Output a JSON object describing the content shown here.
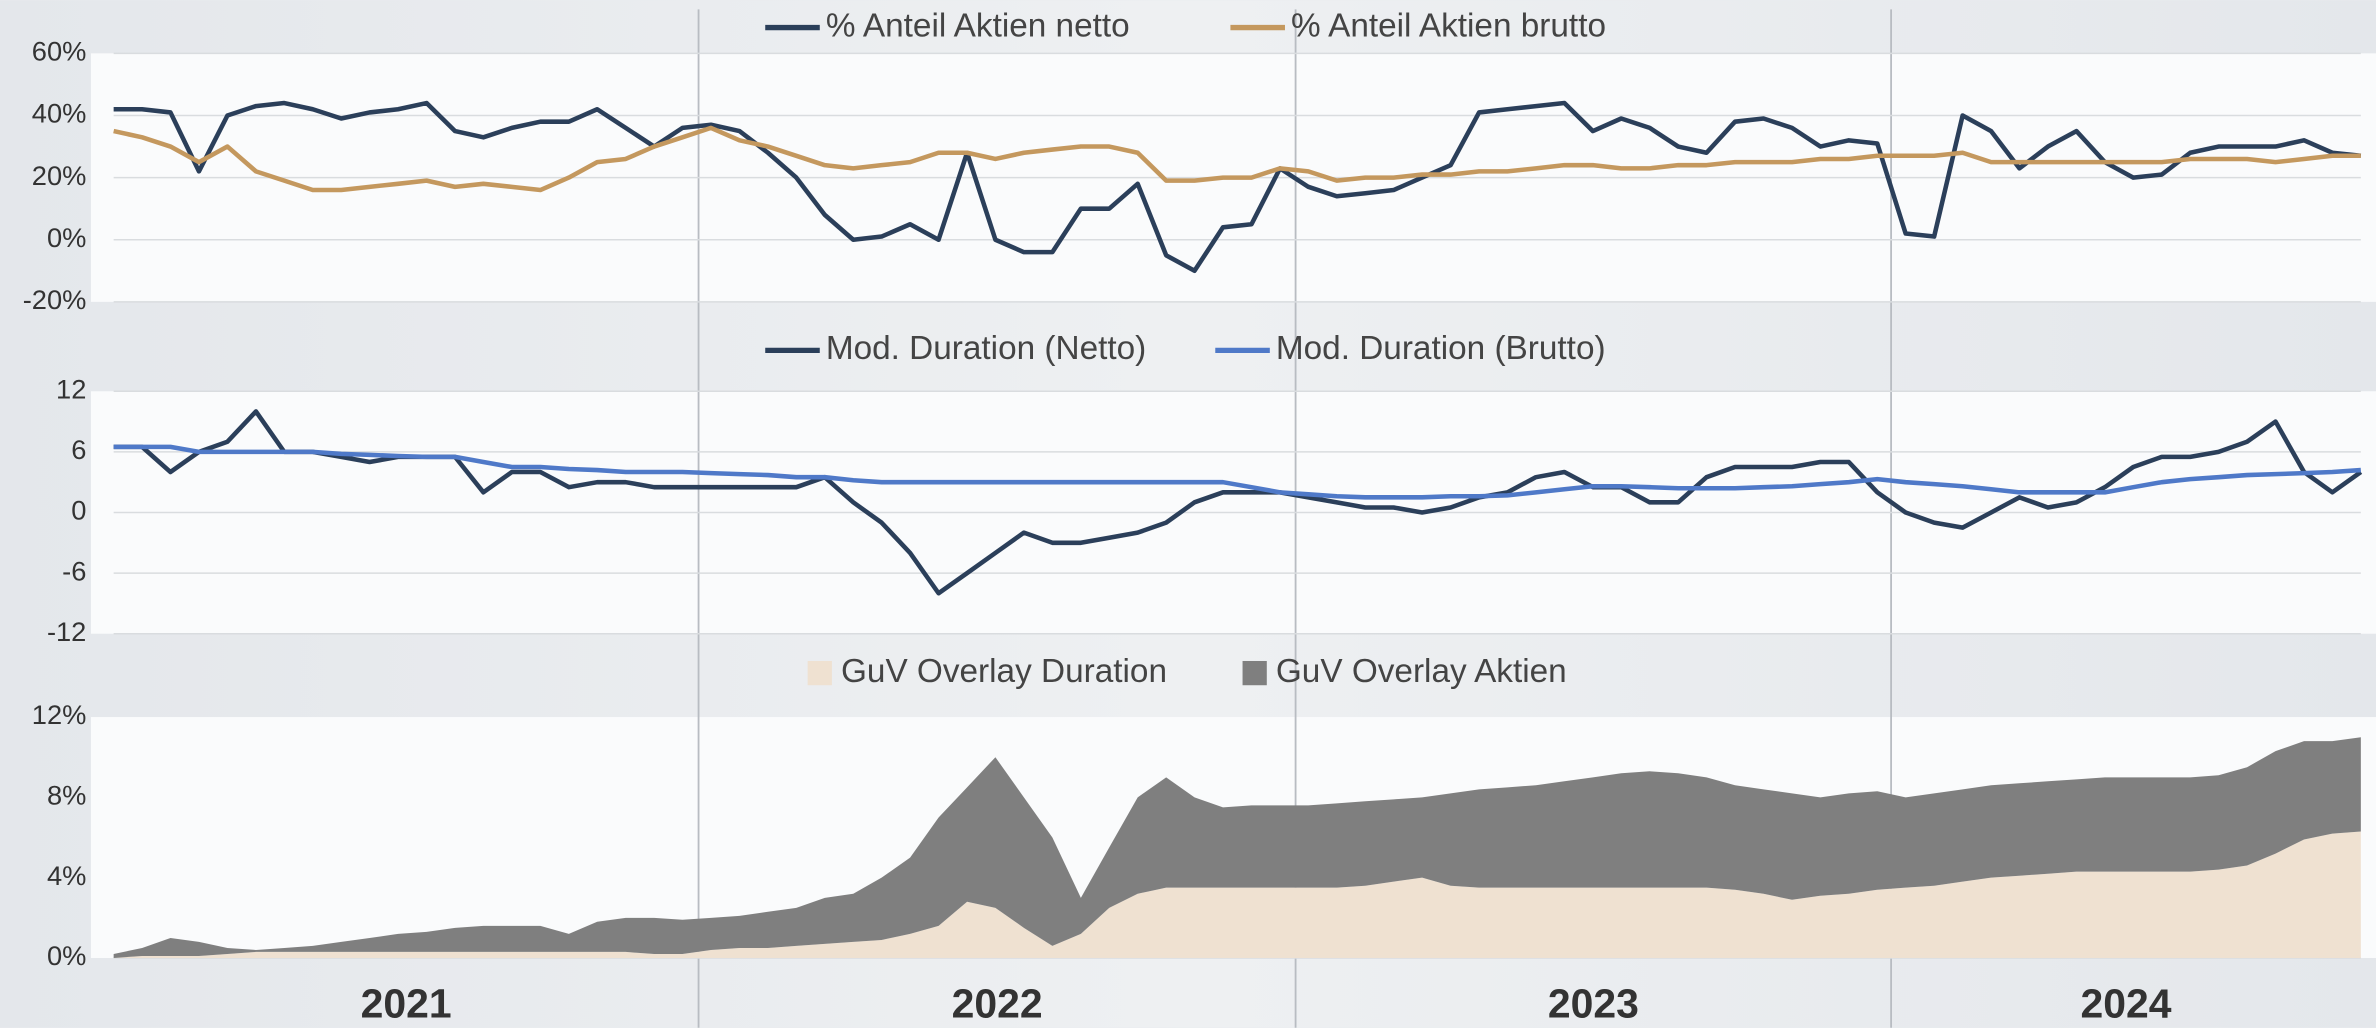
{
  "x_labels": [
    "2021",
    "2022",
    "2023",
    "2024"
  ],
  "chart_data": [
    {
      "type": "line",
      "ylim": [
        -20,
        60
      ],
      "yticks": [
        {
          "value": -20,
          "label": "-20%"
        },
        {
          "value": 0,
          "label": "0%"
        },
        {
          "value": 20,
          "label": "20%"
        },
        {
          "value": 40,
          "label": "40%"
        },
        {
          "value": 60,
          "label": "60%"
        }
      ],
      "grid": true,
      "series": [
        {
          "name": "% Anteil Aktien netto",
          "color": "#2b3f5a",
          "values": [
            42,
            42,
            41,
            22,
            40,
            43,
            44,
            42,
            39,
            41,
            42,
            44,
            35,
            33,
            36,
            38,
            38,
            42,
            36,
            30,
            36,
            37,
            35,
            28,
            20,
            8,
            0,
            1,
            5,
            0,
            28,
            0,
            -4,
            -4,
            10,
            10,
            18,
            -5,
            -10,
            4,
            5,
            23,
            17,
            14,
            15,
            16,
            20,
            24,
            41,
            42,
            43,
            44,
            35,
            39,
            36,
            30,
            28,
            38,
            39,
            36,
            30,
            32,
            31,
            2,
            1,
            40,
            35,
            23,
            30,
            35,
            25,
            20,
            21,
            28,
            30,
            30,
            30,
            32,
            28,
            27
          ]
        },
        {
          "name": "% Anteil Aktien brutto",
          "color": "#c4985e",
          "values": [
            35,
            33,
            30,
            25,
            30,
            22,
            19,
            16,
            16,
            17,
            18,
            19,
            17,
            18,
            17,
            16,
            20,
            25,
            26,
            30,
            33,
            36,
            32,
            30,
            27,
            24,
            23,
            24,
            25,
            28,
            28,
            26,
            28,
            29,
            30,
            30,
            28,
            19,
            19,
            20,
            20,
            23,
            22,
            19,
            20,
            20,
            21,
            21,
            22,
            22,
            23,
            24,
            24,
            23,
            23,
            24,
            24,
            25,
            25,
            25,
            26,
            26,
            27,
            27,
            27,
            28,
            25,
            25,
            25,
            25,
            25,
            25,
            25,
            26,
            26,
            26,
            25,
            26,
            27,
            27
          ]
        }
      ]
    },
    {
      "type": "line",
      "ylim": [
        -12,
        12
      ],
      "yticks": [
        -12,
        -6,
        0,
        6,
        12
      ],
      "grid": true,
      "series": [
        {
          "name": "Mod. Duration (Netto)",
          "color": "#2b3f5a",
          "values": [
            6.5,
            6.5,
            4,
            6,
            7,
            10,
            6,
            6,
            5.5,
            5,
            5.5,
            5.5,
            5.5,
            2,
            4,
            4,
            2.5,
            3,
            3,
            2.5,
            2.5,
            2.5,
            2.5,
            2.5,
            2.5,
            3.5,
            1,
            -1,
            -4,
            -8,
            -6,
            -4,
            -2,
            -3,
            -3,
            -2.5,
            -2,
            -1,
            1,
            2,
            2,
            2,
            1.5,
            1,
            0.5,
            0.5,
            0,
            0.5,
            1.5,
            2,
            3.5,
            4,
            2.5,
            2.5,
            1,
            1,
            3.5,
            4.5,
            4.5,
            4.5,
            5,
            5,
            2,
            0,
            -1,
            -1.5,
            0,
            1.5,
            0.5,
            1,
            2.5,
            4.5,
            5.5,
            5.5,
            6,
            7,
            9,
            4,
            2,
            4
          ]
        },
        {
          "name": "Mod. Duration (Brutto)",
          "color": "#4f79c8",
          "values": [
            6.5,
            6.5,
            6.5,
            6,
            6,
            6,
            6,
            6,
            5.8,
            5.7,
            5.6,
            5.5,
            5.5,
            5,
            4.5,
            4.5,
            4.3,
            4.2,
            4,
            4,
            4,
            3.9,
            3.8,
            3.7,
            3.5,
            3.5,
            3.2,
            3,
            3,
            3,
            3,
            3,
            3,
            3,
            3,
            3,
            3,
            3,
            3,
            3,
            2.5,
            2,
            1.8,
            1.6,
            1.5,
            1.5,
            1.5,
            1.6,
            1.6,
            1.7,
            2,
            2.3,
            2.6,
            2.6,
            2.5,
            2.4,
            2.4,
            2.4,
            2.5,
            2.6,
            2.8,
            3,
            3.3,
            3,
            2.8,
            2.6,
            2.3,
            2,
            2,
            2,
            2,
            2.5,
            3,
            3.3,
            3.5,
            3.7,
            3.8,
            3.9,
            4,
            4.2
          ]
        }
      ]
    },
    {
      "type": "area",
      "stacked": true,
      "ylim": [
        0,
        12
      ],
      "yticks": [
        {
          "value": 0,
          "label": "0%"
        },
        {
          "value": 4,
          "label": "4%"
        },
        {
          "value": 8,
          "label": "8%"
        },
        {
          "value": 12,
          "label": "12%"
        }
      ],
      "grid": false,
      "series": [
        {
          "name": "GuV Overlay Duration",
          "color": "#efe1d1",
          "values": [
            0,
            0.1,
            0.1,
            0.1,
            0.2,
            0.3,
            0.3,
            0.3,
            0.3,
            0.3,
            0.3,
            0.3,
            0.3,
            0.3,
            0.3,
            0.3,
            0.3,
            0.3,
            0.3,
            0.2,
            0.2,
            0.4,
            0.5,
            0.5,
            0.6,
            0.7,
            0.8,
            0.9,
            1.2,
            1.6,
            2.8,
            2.5,
            1.5,
            0.6,
            1.2,
            2.5,
            3.2,
            3.5,
            3.5,
            3.5,
            3.5,
            3.5,
            3.5,
            3.5,
            3.6,
            3.8,
            4,
            3.6,
            3.5,
            3.5,
            3.5,
            3.5,
            3.5,
            3.5,
            3.5,
            3.5,
            3.5,
            3.4,
            3.2,
            2.9,
            3.1,
            3.2,
            3.4,
            3.5,
            3.6,
            3.8,
            4,
            4.1,
            4.2,
            4.3,
            4.3,
            4.3,
            4.3,
            4.3,
            4.4,
            4.6,
            5.2,
            5.9,
            6.2,
            6.3
          ]
        },
        {
          "name": "GuV Overlay Aktien",
          "color": "#7f7f7f",
          "values": [
            0.2,
            0.4,
            0.9,
            0.7,
            0.3,
            0.1,
            0.2,
            0.3,
            0.5,
            0.7,
            0.9,
            1.0,
            1.2,
            1.3,
            1.3,
            1.3,
            0.9,
            1.5,
            1.7,
            1.8,
            1.7,
            1.6,
            1.6,
            1.8,
            1.9,
            2.3,
            2.4,
            3.1,
            3.8,
            5.4,
            5.7,
            7.5,
            6.5,
            5.4,
            1.8,
            3.0,
            4.8,
            5.5,
            4.5,
            4.0,
            4.1,
            4.1,
            4.1,
            4.2,
            4.2,
            4.1,
            4.0,
            4.6,
            4.9,
            5.0,
            5.1,
            5.3,
            5.5,
            5.7,
            5.8,
            5.7,
            5.5,
            5.2,
            5.2,
            5.3,
            4.9,
            5.0,
            4.9,
            4.5,
            4.6,
            4.6,
            4.6,
            4.6,
            4.6,
            4.6,
            4.7,
            4.7,
            4.7,
            4.7,
            4.7,
            4.9,
            5.1,
            4.9,
            4.6,
            4.7
          ]
        }
      ]
    }
  ]
}
